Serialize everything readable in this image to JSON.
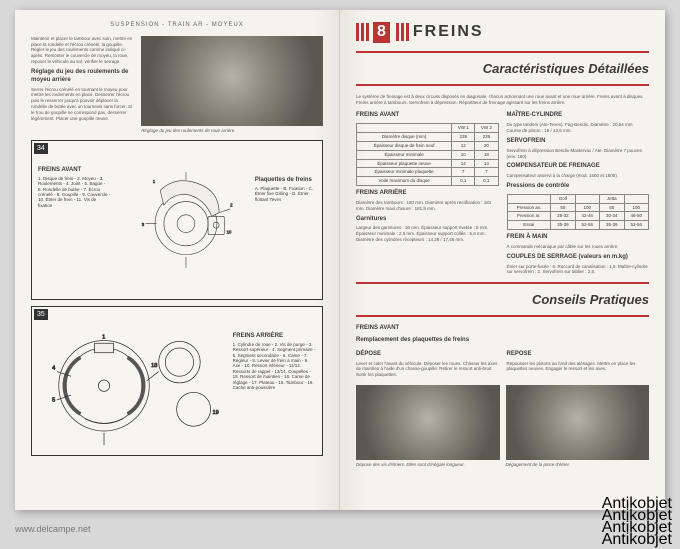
{
  "watermarks": {
    "left": "www.delcampe.net",
    "right": "Antikobjet"
  },
  "left_page": {
    "header": "SUSPENSION - TRAIN AR - MOYEUX",
    "intro_text": "Maintenir et placer le tambour avec soin, mettre en place la rondelle et l'écrou crénelé, la goupille. Régler le jeu des roulements comme indiqué ci-après. Remonter le couvercle de moyeu, la roue, reposer le véhicule au sol, vérifier le serrage.",
    "subheading": "Réglage du jeu des roulements de moyeu arrière",
    "sub_text": "Serrer l'écrou crénelé en tournant le moyeu pour mettre les roulements en place. Desserrer l'écrou puis le resserrer jusqu'à pouvoir déplacer la rondelle de butée avec un tournevis sans forcer. Si le trou de goupille ne correspond pas, desserrer légèrement. Placer une goupille neuve.",
    "photo_caption": "Réglage du jeu des roulements de roue arrière",
    "diagram34": {
      "num": "34",
      "title": "FREINS AVANT",
      "legend": "1. Disque de frein - 2. Moyeu - 3. Roulements - 4. Joint - 5. Bague - 6. Rondelle de butée - 7. Écrou crénelé - 8. Goupille - 9. Couvercle - 10. Étrier de frein - 11. Vis de fixation",
      "side_legend_title": "Plaquettes de freins",
      "side_legend": "A. Plaquette - B. Fixation - C. Étrier fixe Girling - D. Étrier flottant Teves"
    },
    "diagram35": {
      "num": "35",
      "title": "FREINS ARRIÈRE",
      "legend": "1. Cylindre de roue - 2. Vis de purge - 3. Ressort supérieur - 4. Segment primaire - 5. Segment secondaire - 6. Came - 7. Régleur - 8. Levier de frein à main - 9. Axe - 10. Ressort inférieur - 11/12. Ressorts de rappel - 13/14. Coupelles - 15. Ressort de maintien - 16. Came de réglage - 17. Plateau - 18. Tambour - 19. Cache anti-poussière"
    }
  },
  "right_page": {
    "chapter_num": "8",
    "chapter_title": "FREINS",
    "section1": "Caractéristiques Détaillées",
    "intro": "Le système de freinage est à deux circuits disposés en diagonale, chacun actionnant une roue avant et une roue arrière. Freins avant à disques. Freins arrière à tambours. Servofrein à dépression. Répartiteur de freinage agissant sur les freins arrière.",
    "freins_avant_title": "FREINS AVANT",
    "table1": {
      "rows": [
        [
          "",
          "VW 1",
          "VW 2"
        ],
        [
          "Diamètre disque (mm)",
          "239",
          "239"
        ],
        [
          "Épaisseur disque de frein neuf",
          "12",
          "20"
        ],
        [
          "Épaisseur minimale",
          "10",
          "18"
        ],
        [
          "Épaisseur plaquette neuve",
          "14",
          "14"
        ],
        [
          "Épaisseur minimale plaquette",
          "7",
          "7"
        ],
        [
          "Voile maximum du disque",
          "0,1",
          "0,1"
        ]
      ]
    },
    "freins_arriere_title": "FREINS ARRIÈRE",
    "freins_arriere_text": "Diamètre des tambours : 180 mm. Diamètre après rectification : 181 mm. Diamètre maxi d'usure : 181,5 mm.",
    "garnitures_title": "Garnitures",
    "garnitures_text": "Largeur des garnitures : 30 mm. Épaisseur support rivetée : 5 mm. Épaisseur minimale : 2,5 mm. Épaisseur support collée : 5,6 mm. Diamètre des cylindres récepteurs : 14,29 / 17,46 mm.",
    "maitre_cyl_title": "MAÎTRE-CYLINDRE",
    "maitre_cyl_text": "Du type tandem (Ate-Teves). Fag-Bendix. Diamètre : 20,64 mm. Course de piston : 18 / 13,5 mm.",
    "servo_title": "SERVOFREIN",
    "servo_text": "Servofrein à dépression Bendix-Mastervac / Ate. Diamètre 7 pouces (env. 180).",
    "compensateur_title": "COMPENSATEUR DE FREINAGE",
    "compensateur_text": "Compensateur asservi à la charge (mod. 1500 et 1600).",
    "pressions_title": "Pressions de contrôle",
    "table2": {
      "rows": [
        [
          "",
          "Golf",
          "",
          "Jetta",
          ""
        ],
        [
          "Pression av.",
          "50",
          "100",
          "50",
          "100"
        ],
        [
          "Pression ar.",
          "28-32",
          "42-46",
          "30-34",
          "46-50"
        ],
        [
          "Essai",
          "35-39",
          "52-56",
          "35-39",
          "52-56"
        ]
      ]
    },
    "frein_main_title": "FREIN À MAIN",
    "frein_main_text": "À commande mécanique par câble sur les roues arrière.",
    "couples_title": "COUPLES DE SERRAGE (valeurs en m.kg)",
    "couples_text": "Étrier sur porte-fusée : 6. Raccord de canalisation : 1,5. Maître-cylindre sur servofrein : 2. Servofrein sur tablier : 2,5.",
    "section2": "Conseils Pratiques",
    "cp_title": "FREINS AVANT",
    "cp_sub": "Remplacement des plaquettes de freins",
    "cp_depose": "DÉPOSE",
    "cp_depose_text": "Lever et caler l'avant du véhicule. Déposer les roues. Chasser les axes de maintien à l'aide d'un chasse-goupille. Retirer le ressort anti-bruit. Sortir les plaquettes.",
    "cp_repose": "REPOSE",
    "cp_repose_text": "Repousser les pistons au fond des alésages. Mettre en place les plaquettes neuves. Engager le ressort et les axes.",
    "photo1_caption": "Dépose des vis d'étriers. Elles sont d'inégale longueur.",
    "photo2_caption": "Dégagement de la pince d'étrier."
  },
  "colors": {
    "accent": "#b33",
    "text": "#3a3a3a",
    "page_bg": "#f5f3ed",
    "outer_bg": "#d8d8d8"
  }
}
